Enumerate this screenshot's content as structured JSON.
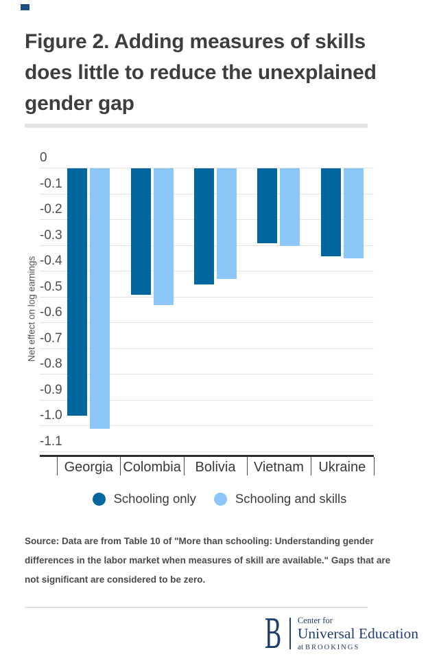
{
  "title": {
    "lines": [
      "Figure 2. Adding measures of skills",
      "does little to reduce the unexplained",
      "gender gap"
    ]
  },
  "chart_data": {
    "type": "bar",
    "title": "Figure 2. Adding measures of skills does little to reduce the unexplained gender gap",
    "categories": [
      "Georgia",
      "Colombia",
      "Bolivia",
      "Vietnam",
      "Ukraine"
    ],
    "series": [
      {
        "name": "Schooling only",
        "color": "#01679e",
        "values": [
          -0.96,
          -0.49,
          -0.45,
          -0.29,
          -0.34
        ]
      },
      {
        "name": "Schooling and skills",
        "color": "#8dc7fa",
        "values": [
          -1.01,
          -0.53,
          -0.43,
          -0.3,
          -0.35
        ]
      }
    ],
    "xlabel": "",
    "ylabel": "Net effect on log earnings",
    "ylim": [
      -1.1,
      0
    ],
    "ytick_labels": [
      "0",
      "-0.1",
      "-0.2",
      "-0.3",
      "-0.4",
      "-0.5",
      "-0.6",
      "-0.7",
      "-0.8",
      "-0.9",
      "-1.0",
      "-1.1"
    ],
    "grid": true,
    "legend_position": "bottom-center"
  },
  "source": {
    "text": "Source: Data are from Table 10 of \"More than schooling: Understanding gender differences in the labor market when measures of skill are available.\" Gaps that are not significant are considered to be zero."
  },
  "footer": {
    "logo_b": "B",
    "center_for": "Center for",
    "universal_education": "Universal Education",
    "at": "at",
    "brookings": "BROOKINGS"
  },
  "colors": {
    "accent_mark": "#1d4e80",
    "dark_bar": "#01679e",
    "light_bar": "#8dc7fa",
    "brand_navy": "#1f3e6d",
    "title_text": "#3e3e3e",
    "divider_gray": "#e4e4e4",
    "gridline": "#e2e2e2"
  }
}
